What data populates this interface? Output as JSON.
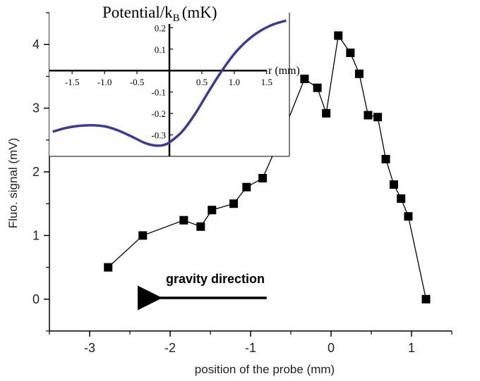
{
  "chart_data": [
    {
      "type": "line",
      "xlabel": "position of the probe (mm)",
      "ylabel": "Fluo. signal (mV)",
      "xlim": [
        -3.5,
        1.5
      ],
      "ylim": [
        -0.5,
        4.5
      ],
      "xticks": [
        -3,
        -2,
        -1,
        0,
        1
      ],
      "yticks": [
        0,
        1,
        2,
        3,
        4
      ],
      "xtick_labels": [
        "-3",
        "-2",
        "-1",
        "0",
        "1"
      ],
      "ytick_labels": [
        "0",
        "1",
        "2",
        "3",
        "4"
      ],
      "marker": "square",
      "line_color": "#000000",
      "series": [
        {
          "x": [
            -2.77,
            -2.34,
            -1.83,
            -1.62,
            -1.48,
            -1.21,
            -1.05,
            -0.85,
            -0.57,
            -0.33,
            -0.17,
            -0.06,
            0.09,
            0.24,
            0.35,
            0.46,
            0.58,
            0.68,
            0.78,
            0.87,
            0.96,
            1.18
          ],
          "y": [
            0.5,
            1.0,
            1.24,
            1.14,
            1.4,
            1.5,
            1.76,
            1.9,
            2.7,
            3.46,
            3.32,
            2.92,
            4.14,
            3.87,
            3.54,
            2.89,
            2.86,
            2.2,
            1.8,
            1.58,
            1.3,
            0.0
          ]
        }
      ],
      "annotation": {
        "text": "gravity direction",
        "arrow_from_x": -0.8,
        "arrow_to_x": -2.25,
        "arrow_y": 0.02
      }
    },
    {
      "type": "line",
      "title_main": "Potential/k",
      "title_sub": "B",
      "title_unit": "(mK)",
      "xlabel": "r (mm)",
      "xlim": [
        -1.85,
        1.85
      ],
      "ylim": [
        -0.4,
        0.27
      ],
      "xticks": [
        -1.5,
        -1.0,
        -0.5,
        0.5,
        1.0,
        1.5
      ],
      "xtick_labels": [
        "-1.5",
        "-1.0",
        "-0.5",
        "0.5",
        "1.0",
        "1.5"
      ],
      "yticks": [
        0.2,
        0.1,
        -0.1,
        -0.2,
        -0.3
      ],
      "ytick_labels": [
        "0.2",
        "0.1",
        "-0.1",
        "-0.2",
        "-0.3"
      ],
      "line_color": "#3a3a9a",
      "series": [
        {
          "x": [
            -1.8,
            -1.6,
            -1.4,
            -1.2,
            -1.0,
            -0.8,
            -0.6,
            -0.4,
            -0.3,
            -0.2,
            -0.1,
            0.0,
            0.2,
            0.4,
            0.6,
            0.8,
            1.0,
            1.2,
            1.4,
            1.6,
            1.8
          ],
          "y": [
            -0.285,
            -0.268,
            -0.258,
            -0.255,
            -0.26,
            -0.278,
            -0.305,
            -0.335,
            -0.345,
            -0.35,
            -0.348,
            -0.335,
            -0.283,
            -0.2,
            -0.1,
            -0.005,
            0.078,
            0.14,
            0.185,
            0.215,
            0.233
          ]
        }
      ]
    }
  ]
}
